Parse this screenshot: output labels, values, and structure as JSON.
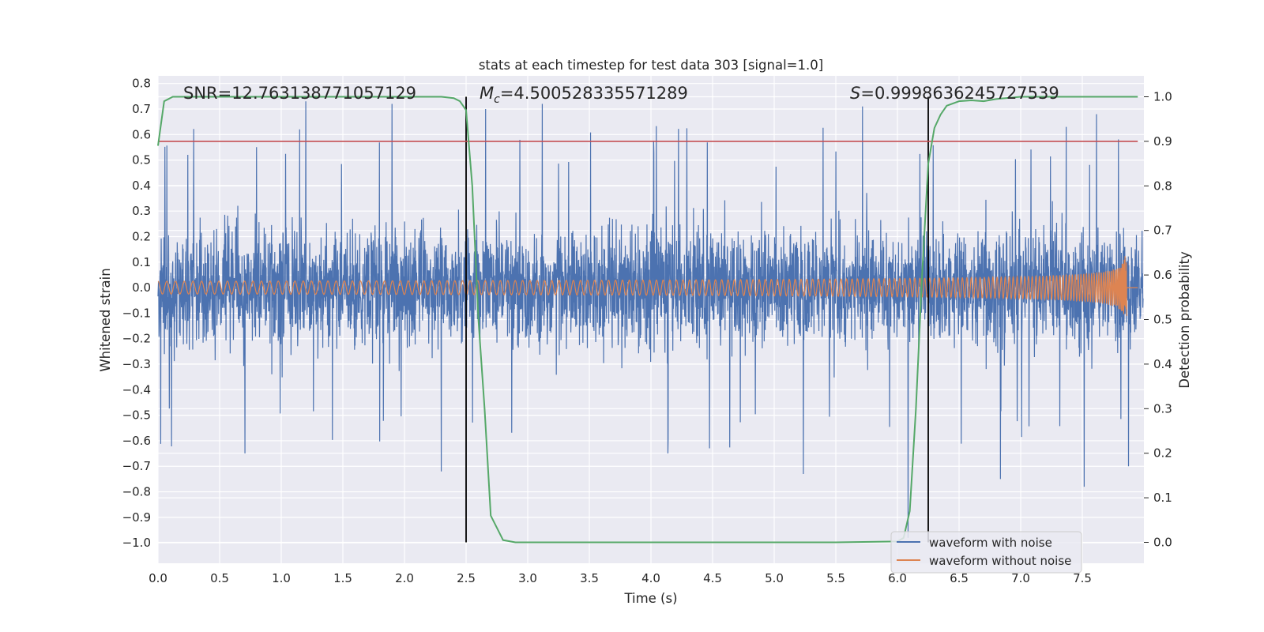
{
  "chart_data": {
    "type": "line",
    "title": "stats at each timestep for test data 303 [signal=1.0]",
    "xlabel": "Time (s)",
    "ylabel": "Whitened strain",
    "y2label": "Detection probability",
    "xlim": [
      0.0,
      8.0
    ],
    "ylim": [
      -1.08,
      0.83
    ],
    "y2lim": [
      -0.047,
      1.047
    ],
    "x_ticks": [
      "0.0",
      "0.5",
      "1.0",
      "1.5",
      "2.0",
      "2.5",
      "3.0",
      "3.5",
      "4.0",
      "4.5",
      "5.0",
      "5.5",
      "6.0",
      "6.5",
      "7.0",
      "7.5"
    ],
    "y_ticks": [
      "0.8",
      "0.7",
      "0.6",
      "0.5",
      "0.4",
      "0.3",
      "0.2",
      "0.1",
      "0.0",
      "−0.1",
      "−0.2",
      "−0.3",
      "−0.4",
      "−0.5",
      "−0.6",
      "−0.7",
      "−0.8",
      "−0.9",
      "−1.0"
    ],
    "y2_ticks": [
      "1.0",
      "0.9",
      "0.8",
      "0.7",
      "0.6",
      "0.5",
      "0.4",
      "0.3",
      "0.2",
      "0.1",
      "0.0"
    ],
    "grid": true,
    "legend_position": "lower-right",
    "annotations": {
      "snr": "SNR=12.763138771057129",
      "mc_symbol": "M",
      "mc_sub": "c",
      "mc_value": "=4.500528335571289",
      "s_symbol": "S",
      "s_value": "=0.9998636245727539"
    },
    "vertical_lines": [
      2.5,
      6.25
    ],
    "threshold_probability": 0.9,
    "series": [
      {
        "name": "waveform with noise",
        "color": "#4c72b0",
        "axis": "left",
        "envelope_description": "dense noisy strain, mostly within ±0.4, spikes to about 0.73 and -0.98"
      },
      {
        "name": "waveform without noise",
        "color": "#dd8452",
        "axis": "left",
        "description": "chirp signal, amplitude about 0.025 at 0 s growing to 0.3 at 7.85 s, then 0"
      },
      {
        "axis": "right",
        "color": "#55a868",
        "x": [
          0.0,
          0.05,
          0.12,
          0.3,
          1.0,
          2.0,
          2.3,
          2.4,
          2.45,
          2.5,
          2.55,
          2.6,
          2.65,
          2.7,
          2.8,
          2.9,
          3.5,
          4.5,
          5.5,
          6.0,
          6.05,
          6.1,
          6.15,
          6.2,
          6.25,
          6.3,
          6.35,
          6.4,
          6.5,
          6.6,
          6.7,
          6.8,
          7.0,
          7.5,
          7.95
        ],
        "values": [
          0.89,
          0.99,
          1.0,
          1.0,
          1.0,
          1.0,
          1.0,
          0.997,
          0.99,
          0.97,
          0.8,
          0.5,
          0.3,
          0.06,
          0.005,
          0.0,
          0.0,
          0.0,
          0.0,
          0.002,
          0.01,
          0.07,
          0.3,
          0.6,
          0.85,
          0.93,
          0.96,
          0.98,
          0.99,
          0.992,
          0.99,
          0.995,
          1.0,
          1.0,
          1.0
        ]
      },
      {
        "axis": "right",
        "color": "#c44e52",
        "x": [
          0.0,
          7.95
        ],
        "values": [
          0.9,
          0.9
        ]
      }
    ]
  }
}
